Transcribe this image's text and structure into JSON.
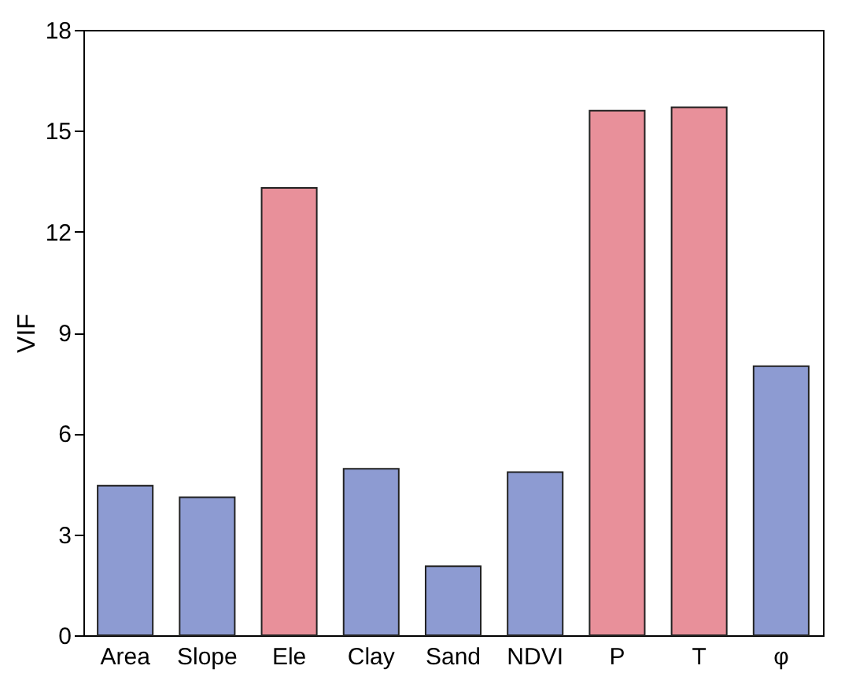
{
  "chart_data": {
    "type": "bar",
    "ylabel": "VIF",
    "categories": [
      "Area",
      "Slope",
      "Ele",
      "Clay",
      "Sand",
      "NDVI",
      "P",
      "T",
      "φ"
    ],
    "values": [
      4.45,
      4.1,
      13.3,
      4.95,
      2.05,
      4.85,
      15.6,
      15.7,
      8.0
    ],
    "colors": [
      "#8d9bd2",
      "#8d9bd2",
      "#e8909a",
      "#8d9bd2",
      "#8d9bd2",
      "#8d9bd2",
      "#e8909a",
      "#e8909a",
      "#8d9bd2"
    ],
    "ylim": [
      0,
      18
    ],
    "yticks": [
      0,
      3,
      6,
      9,
      12,
      15,
      18
    ],
    "grid": false
  }
}
